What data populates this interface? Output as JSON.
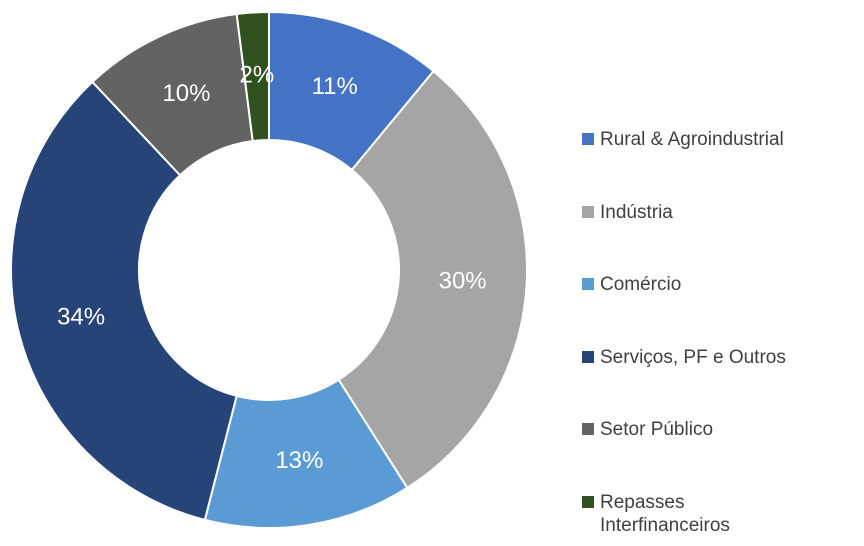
{
  "chart_data": {
    "type": "donut",
    "categories": [
      "Rural & Agroindustrial",
      "Indústria",
      "Comércio",
      "Serviços, PF e Outros",
      "Setor Público",
      "Repasses Interfinanceiros"
    ],
    "values": [
      11,
      30,
      13,
      34,
      10,
      2
    ],
    "value_labels": [
      "11%",
      "30%",
      "13%",
      "34%",
      "10%",
      "2%"
    ],
    "colors": [
      "#4472c4",
      "#a5a5a5",
      "#5b9bd5",
      "#264478",
      "#636363",
      "#2f5220"
    ],
    "legend": "right"
  }
}
